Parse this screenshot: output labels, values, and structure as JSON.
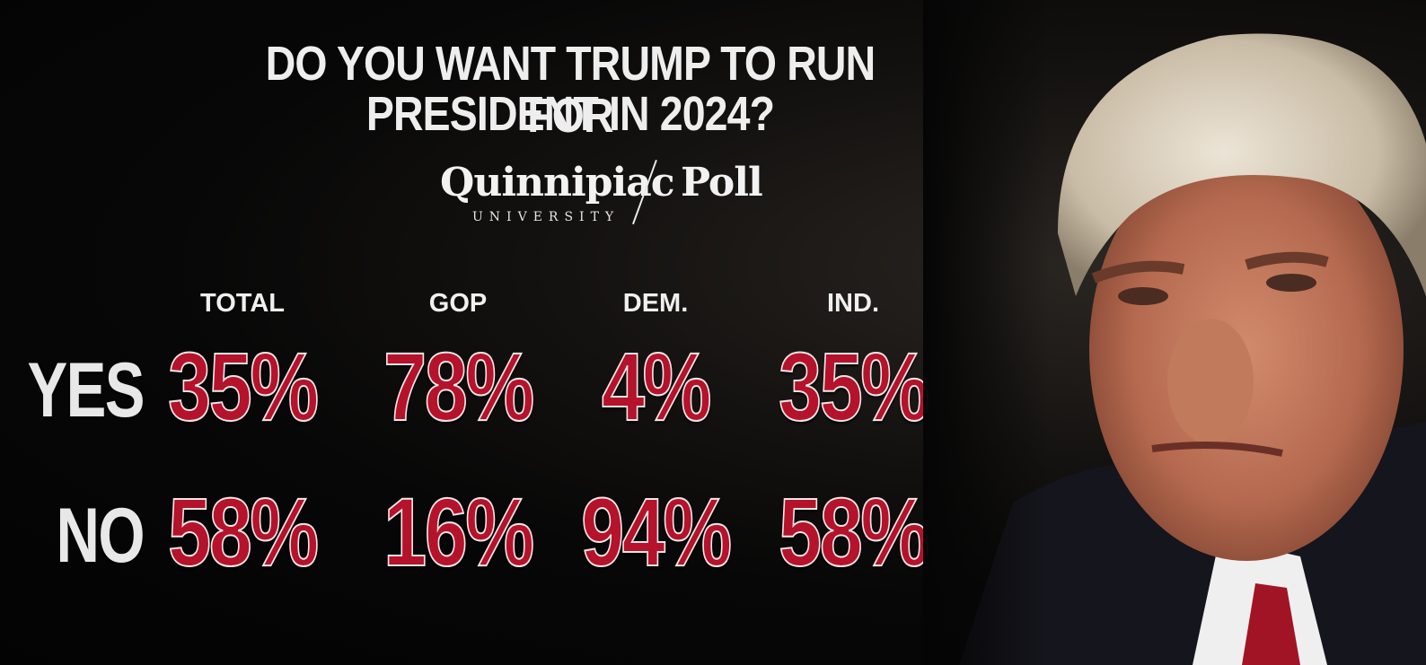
{
  "title_line1": "DO YOU WANT TRUMP TO RUN FOR",
  "title_line2": "PRESIDENT IN 2024?",
  "logo": {
    "main": "Quinnipiac",
    "sub": "UNIVERSITY",
    "poll": "Poll"
  },
  "colors": {
    "value_fill": "#b5122b",
    "value_outline": "#f2e6e6",
    "text": "#eeeeee",
    "background": "#050505"
  },
  "chart_data": {
    "type": "table",
    "title": "DO YOU WANT TRUMP TO RUN FOR PRESIDENT IN 2024?",
    "unit": "%",
    "columns": [
      "TOTAL",
      "GOP",
      "DEM.",
      "IND."
    ],
    "rows": [
      {
        "label": "YES",
        "values": [
          35,
          78,
          4,
          35
        ],
        "display": [
          "35%",
          "78%",
          "4%",
          "35%"
        ]
      },
      {
        "label": "NO",
        "values": [
          58,
          16,
          94,
          58
        ],
        "display": [
          "58%",
          "16%",
          "94%",
          "58%"
        ]
      }
    ]
  }
}
